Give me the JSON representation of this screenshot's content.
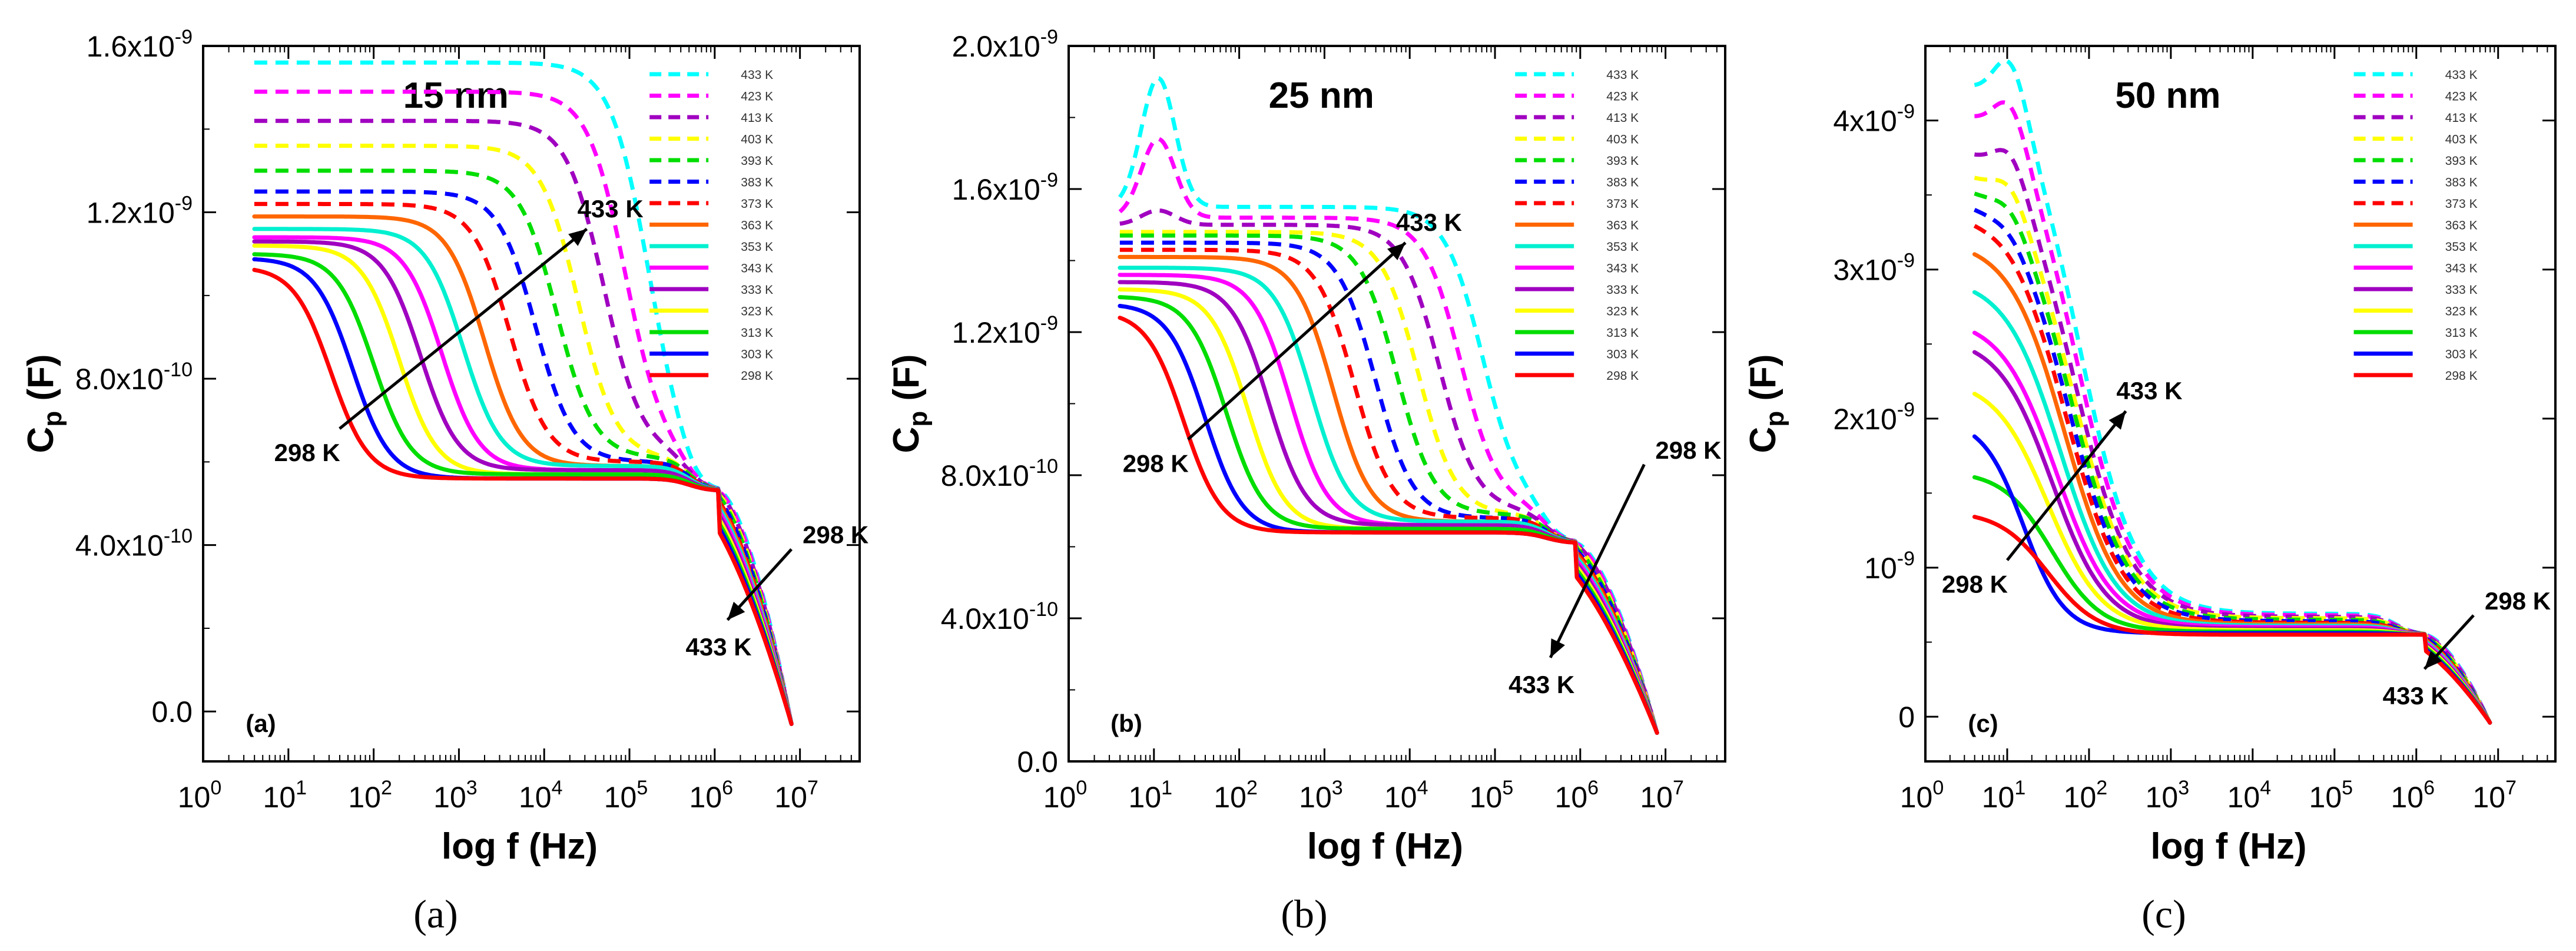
{
  "figure": {
    "captions": [
      "(a)",
      "(b)",
      "(c)"
    ]
  },
  "colors": {
    "298 K": "#ff0000",
    "303 K": "#0000ff",
    "313 K": "#00dd00",
    "323 K": "#ffff00",
    "333 K": "#a000c0",
    "343 K": "#ff00ff",
    "353 K": "#00f0d0",
    "363 K": "#ff6600",
    "373 K": "#ff0000",
    "383 K": "#0000ff",
    "393 K": "#00dd00",
    "403 K": "#ffff00",
    "413 K": "#a000c0",
    "423 K": "#ff00ff",
    "433 K": "#00ffff"
  },
  "chart_data": [
    {
      "type": "line",
      "panel_label": "(a)",
      "title": "15 nm",
      "xlabel": "log f (Hz)",
      "ylabel_main": "C",
      "ylabel_sub": "p",
      "ylabel_unit": " (F)",
      "x_scale": "log10",
      "xlim_exp": [
        0,
        7.7
      ],
      "x_tick_labels": [
        {
          "base": "10",
          "exp": "0"
        },
        {
          "base": "10",
          "exp": "1"
        },
        {
          "base": "10",
          "exp": "2"
        },
        {
          "base": "10",
          "exp": "3"
        },
        {
          "base": "10",
          "exp": "4"
        },
        {
          "base": "10",
          "exp": "5"
        },
        {
          "base": "10",
          "exp": "6"
        },
        {
          "base": "10",
          "exp": "7"
        }
      ],
      "ylim": [
        -1.2e-10,
        1.6e-09
      ],
      "y_ticks": [
        {
          "value": 0,
          "base": "0.0",
          "exp": ""
        },
        {
          "value": 4e-10,
          "base": "4.0x10",
          "exp": "-10"
        },
        {
          "value": 8e-10,
          "base": "8.0x10",
          "exp": "-10"
        },
        {
          "value": 1.2e-09,
          "base": "1.2x10",
          "exp": "-9"
        },
        {
          "value": 1.6e-09,
          "base": "1.6x10",
          "exp": "-9"
        }
      ],
      "legend": [
        "433 K",
        "423 K",
        "413 K",
        "403 K",
        "393 K",
        "383 K",
        "373 K",
        "363 K",
        "353 K",
        "343 K",
        "333 K",
        "323 K",
        "313 K",
        "303 K",
        "298 K"
      ],
      "dashed_series": [
        "433 K",
        "423 K",
        "413 K",
        "403 K",
        "393 K",
        "383 K",
        "373 K"
      ],
      "annotations": {
        "arrow1": {
          "from": [
            1.6,
            6.8e-10
          ],
          "to": [
            4.5,
            1.16e-09
          ],
          "label_from": "298 K",
          "label_to": "433 K"
        },
        "arrow2": {
          "from": [
            6.9,
            3.9e-10
          ],
          "to": [
            6.15,
            2.2e-10
          ],
          "label_from": "298 K",
          "label_to": "433 K"
        }
      },
      "series_params": [
        {
          "name": "298 K",
          "y0": 1.07e-09,
          "x_t": 1.5,
          "w": 0.22,
          "bump": 0,
          "ymid": 5.6e-10
        },
        {
          "name": "303 K",
          "y0": 1.09e-09,
          "x_t": 1.75,
          "w": 0.22,
          "bump": 0,
          "ymid": 5.6e-10
        },
        {
          "name": "313 K",
          "y0": 1.1e-09,
          "x_t": 2.0,
          "w": 0.22,
          "bump": 0,
          "ymid": 5.7e-10
        },
        {
          "name": "323 K",
          "y0": 1.12e-09,
          "x_t": 2.3,
          "w": 0.22,
          "bump": 0,
          "ymid": 5.7e-10
        },
        {
          "name": "333 K",
          "y0": 1.13e-09,
          "x_t": 2.55,
          "w": 0.22,
          "bump": 0,
          "ymid": 5.8e-10
        },
        {
          "name": "343 K",
          "y0": 1.14e-09,
          "x_t": 2.8,
          "w": 0.22,
          "bump": 0,
          "ymid": 5.8e-10
        },
        {
          "name": "353 K",
          "y0": 1.16e-09,
          "x_t": 3.05,
          "w": 0.22,
          "bump": 0,
          "ymid": 5.9e-10
        },
        {
          "name": "363 K",
          "y0": 1.19e-09,
          "x_t": 3.3,
          "w": 0.22,
          "bump": 0,
          "ymid": 5.9e-10
        },
        {
          "name": "373 K",
          "y0": 1.22e-09,
          "x_t": 3.6,
          "w": 0.22,
          "bump": 0,
          "ymid": 6e-10
        },
        {
          "name": "383 K",
          "y0": 1.25e-09,
          "x_t": 3.9,
          "w": 0.22,
          "bump": 0,
          "ymid": 6e-10
        },
        {
          "name": "393 K",
          "y0": 1.3e-09,
          "x_t": 4.15,
          "w": 0.22,
          "bump": 0,
          "ymid": 6.1e-10
        },
        {
          "name": "403 K",
          "y0": 1.36e-09,
          "x_t": 4.4,
          "w": 0.22,
          "bump": 0,
          "ymid": 6.1e-10
        },
        {
          "name": "413 K",
          "y0": 1.42e-09,
          "x_t": 4.7,
          "w": 0.22,
          "bump": 0,
          "ymid": 6.2e-10
        },
        {
          "name": "423 K",
          "y0": 1.49e-09,
          "x_t": 4.95,
          "w": 0.22,
          "bump": 0,
          "ymid": 6.2e-10
        },
        {
          "name": "433 K",
          "y0": 1.56e-09,
          "x_t": 5.2,
          "w": 0.22,
          "bump": 0,
          "ymid": 6.3e-10
        }
      ],
      "tail": {
        "x_cross": 6.05,
        "y_cross": 5.3e-10,
        "y_end": -3e-11,
        "x_end": 6.9
      }
    },
    {
      "type": "line",
      "panel_label": "(b)",
      "title": "25 nm",
      "xlabel": "log f (Hz)",
      "ylabel_main": "C",
      "ylabel_sub": "p",
      "ylabel_unit": " (F)",
      "x_scale": "log10",
      "xlim_exp": [
        0,
        7.7
      ],
      "x_tick_labels": [
        {
          "base": "10",
          "exp": "0"
        },
        {
          "base": "10",
          "exp": "1"
        },
        {
          "base": "10",
          "exp": "2"
        },
        {
          "base": "10",
          "exp": "3"
        },
        {
          "base": "10",
          "exp": "4"
        },
        {
          "base": "10",
          "exp": "5"
        },
        {
          "base": "10",
          "exp": "6"
        },
        {
          "base": "10",
          "exp": "7"
        }
      ],
      "ylim": [
        0,
        2e-09
      ],
      "y_ticks": [
        {
          "value": 0,
          "base": "0.0",
          "exp": ""
        },
        {
          "value": 4e-10,
          "base": "4.0x10",
          "exp": "-10"
        },
        {
          "value": 8e-10,
          "base": "8.0x10",
          "exp": "-10"
        },
        {
          "value": 1.2e-09,
          "base": "1.2x10",
          "exp": "-9"
        },
        {
          "value": 1.6e-09,
          "base": "1.6x10",
          "exp": "-9"
        },
        {
          "value": 2e-09,
          "base": "2.0x10",
          "exp": "-9"
        }
      ],
      "legend": [
        "433 K",
        "423 K",
        "413 K",
        "403 K",
        "393 K",
        "383 K",
        "373 K",
        "363 K",
        "353 K",
        "343 K",
        "333 K",
        "323 K",
        "313 K",
        "303 K",
        "298 K"
      ],
      "dashed_series": [
        "433 K",
        "423 K",
        "413 K",
        "403 K",
        "393 K",
        "383 K",
        "373 K"
      ],
      "annotations": {
        "arrow1": {
          "from": [
            1.4,
            9e-10
          ],
          "to": [
            3.95,
            1.45e-09
          ],
          "label_from": "298 K",
          "label_to": "433 K"
        },
        "arrow2": {
          "from": [
            6.75,
            8.3e-10
          ],
          "to": [
            5.65,
            2.9e-10
          ],
          "label_from": "298 K",
          "label_to": "433 K"
        }
      },
      "series_params": [
        {
          "name": "298 K",
          "y0": 1.26e-09,
          "x_t": 1.35,
          "w": 0.22,
          "bump": 0,
          "ymid": 6.4e-10
        },
        {
          "name": "303 K",
          "y0": 1.28e-09,
          "x_t": 1.6,
          "w": 0.22,
          "bump": 0,
          "ymid": 6.4e-10
        },
        {
          "name": "313 K",
          "y0": 1.3e-09,
          "x_t": 1.85,
          "w": 0.22,
          "bump": 0,
          "ymid": 6.5e-10
        },
        {
          "name": "323 K",
          "y0": 1.32e-09,
          "x_t": 2.1,
          "w": 0.22,
          "bump": 0,
          "ymid": 6.5e-10
        },
        {
          "name": "333 K",
          "y0": 1.34e-09,
          "x_t": 2.35,
          "w": 0.22,
          "bump": 0,
          "ymid": 6.6e-10
        },
        {
          "name": "343 K",
          "y0": 1.36e-09,
          "x_t": 2.6,
          "w": 0.22,
          "bump": 0,
          "ymid": 6.6e-10
        },
        {
          "name": "353 K",
          "y0": 1.38e-09,
          "x_t": 2.85,
          "w": 0.22,
          "bump": 0,
          "ymid": 6.7e-10
        },
        {
          "name": "363 K",
          "y0": 1.41e-09,
          "x_t": 3.1,
          "w": 0.22,
          "bump": 0,
          "ymid": 6.7e-10
        },
        {
          "name": "373 K",
          "y0": 1.43e-09,
          "x_t": 3.35,
          "w": 0.22,
          "bump": 0,
          "ymid": 6.8e-10
        },
        {
          "name": "383 K",
          "y0": 1.45e-09,
          "x_t": 3.6,
          "w": 0.22,
          "bump": 0,
          "ymid": 6.8e-10
        },
        {
          "name": "393 K",
          "y0": 1.47e-09,
          "x_t": 3.85,
          "w": 0.22,
          "bump": 0,
          "ymid": 6.9e-10
        },
        {
          "name": "403 K",
          "y0": 1.48e-09,
          "x_t": 4.1,
          "w": 0.22,
          "bump": 0,
          "ymid": 6.9e-10
        },
        {
          "name": "413 K",
          "y0": 1.5e-09,
          "x_t": 4.35,
          "w": 0.22,
          "bump": 4e-11,
          "ymid": 7e-10
        },
        {
          "name": "423 K",
          "y0": 1.52e-09,
          "x_t": 4.6,
          "w": 0.22,
          "bump": 2.2e-10,
          "ymid": 7.1e-10
        },
        {
          "name": "433 K",
          "y0": 1.55e-09,
          "x_t": 4.85,
          "w": 0.22,
          "bump": 3.6e-10,
          "ymid": 7.2e-10
        }
      ],
      "tail": {
        "x_cross": 5.95,
        "y_cross": 6.1e-10,
        "y_end": 8e-11,
        "x_end": 6.9
      }
    },
    {
      "type": "line",
      "panel_label": "(c)",
      "title": "50 nm",
      "xlabel": "log f (Hz)",
      "ylabel_main": "C",
      "ylabel_sub": "p",
      "ylabel_unit": " (F)",
      "x_scale": "log10",
      "xlim_exp": [
        0,
        7.7
      ],
      "x_tick_labels": [
        {
          "base": "10",
          "exp": "0"
        },
        {
          "base": "10",
          "exp": "1"
        },
        {
          "base": "10",
          "exp": "2"
        },
        {
          "base": "10",
          "exp": "3"
        },
        {
          "base": "10",
          "exp": "4"
        },
        {
          "base": "10",
          "exp": "5"
        },
        {
          "base": "10",
          "exp": "6"
        },
        {
          "base": "10",
          "exp": "7"
        }
      ],
      "ylim": [
        -3e-10,
        4.5e-09
      ],
      "y_ticks": [
        {
          "value": 0,
          "base": "0",
          "exp": ""
        },
        {
          "value": 1e-09,
          "base": "10",
          "exp": "-9"
        },
        {
          "value": 2e-09,
          "base": "2x10",
          "exp": "-9"
        },
        {
          "value": 3e-09,
          "base": "3x10",
          "exp": "-9"
        },
        {
          "value": 4e-09,
          "base": "4x10",
          "exp": "-9"
        }
      ],
      "legend": [
        "433 K",
        "423 K",
        "413 K",
        "403 K",
        "393 K",
        "383 K",
        "373 K",
        "363 K",
        "353 K",
        "343 K",
        "333 K",
        "323 K",
        "313 K",
        "303 K",
        "298 K"
      ],
      "dashed_series": [
        "433 K",
        "423 K",
        "413 K",
        "403 K",
        "393 K",
        "383 K",
        "373 K"
      ],
      "annotations": {
        "arrow1": {
          "from": [
            1.0,
            1.05e-09
          ],
          "to": [
            2.45,
            2.05e-09
          ],
          "label_from": "298 K",
          "label_to": "433 K"
        },
        "arrow2": {
          "from": [
            6.7,
            6.8e-10
          ],
          "to": [
            6.1,
            3.2e-10
          ],
          "label_from": "298 K",
          "label_to": "433 K"
        }
      },
      "series_params": [
        {
          "name": "298 K",
          "y0": 1.38e-09,
          "x_t": 1.5,
          "w": 0.3,
          "bump": 0,
          "ymid": 5.5e-10
        },
        {
          "name": "303 K",
          "y0": 2e-09,
          "x_t": 1.2,
          "w": 0.25,
          "bump": 0,
          "ymid": 5.6e-10
        },
        {
          "name": "313 K",
          "y0": 1.65e-09,
          "x_t": 1.55,
          "w": 0.3,
          "bump": 0,
          "ymid": 5.7e-10
        },
        {
          "name": "323 K",
          "y0": 2.27e-09,
          "x_t": 1.5,
          "w": 0.33,
          "bump": 0,
          "ymid": 5.8e-10
        },
        {
          "name": "333 K",
          "y0": 2.55e-09,
          "x_t": 1.55,
          "w": 0.33,
          "bump": 0,
          "ymid": 5.9e-10
        },
        {
          "name": "343 K",
          "y0": 2.68e-09,
          "x_t": 1.6,
          "w": 0.34,
          "bump": 0,
          "ymid": 6e-10
        },
        {
          "name": "353 K",
          "y0": 2.95e-09,
          "x_t": 1.65,
          "w": 0.34,
          "bump": 0,
          "ymid": 6.1e-10
        },
        {
          "name": "363 K",
          "y0": 3.2e-09,
          "x_t": 1.7,
          "w": 0.34,
          "bump": 0,
          "ymid": 6.2e-10
        },
        {
          "name": "373 K",
          "y0": 3.4e-09,
          "x_t": 1.72,
          "w": 0.35,
          "bump": 2e-11,
          "ymid": 6.3e-10
        },
        {
          "name": "383 K",
          "y0": 3.5e-09,
          "x_t": 1.75,
          "w": 0.35,
          "bump": 5e-11,
          "ymid": 6.4e-10
        },
        {
          "name": "393 K",
          "y0": 3.6e-09,
          "x_t": 1.78,
          "w": 0.35,
          "bump": 1e-10,
          "ymid": 6.5e-10
        },
        {
          "name": "403 K",
          "y0": 3.7e-09,
          "x_t": 1.8,
          "w": 0.35,
          "bump": 1.5e-10,
          "ymid": 6.6e-10
        },
        {
          "name": "413 K",
          "y0": 3.85e-09,
          "x_t": 1.82,
          "w": 0.35,
          "bump": 2.2e-10,
          "ymid": 6.7e-10
        },
        {
          "name": "423 K",
          "y0": 4.1e-09,
          "x_t": 1.85,
          "w": 0.35,
          "bump": 3e-10,
          "ymid": 6.8e-10
        },
        {
          "name": "433 K",
          "y0": 4.3e-09,
          "x_t": 1.88,
          "w": 0.35,
          "bump": 3.8e-10,
          "ymid": 6.9e-10
        }
      ],
      "tail": {
        "x_cross": 6.1,
        "y_cross": 5.5e-10,
        "y_end": -4e-11,
        "x_end": 6.9
      }
    }
  ]
}
